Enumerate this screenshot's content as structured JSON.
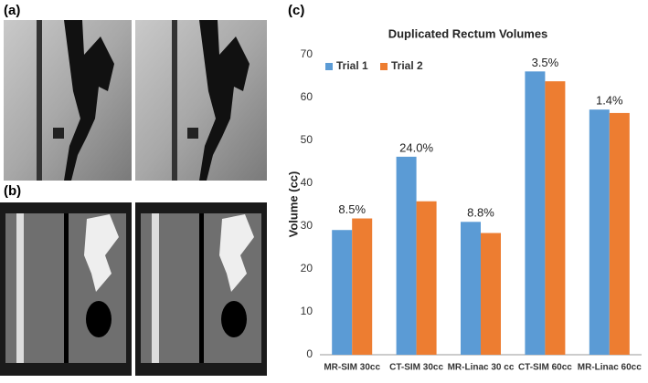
{
  "panels": [
    "(a)",
    "(b)",
    "(c)"
  ],
  "chart_data": {
    "type": "bar",
    "title": "Duplicated Rectum Volumes",
    "y_label": "Volume (cc)",
    "categories": [
      "MR-SIM 30cc",
      "CT-SIM 30cc",
      "MR-Linac 30 cc",
      "CT-SIM 60cc",
      "MR-Linac 60cc"
    ],
    "series": [
      {
        "name": "Trial 1",
        "color": "#5b9bd5",
        "values": [
          29.1,
          46.2,
          31.0,
          66.1,
          57.2
        ]
      },
      {
        "name": "Trial 2",
        "color": "#ed7d31",
        "values": [
          31.8,
          35.8,
          28.4,
          63.8,
          56.4
        ]
      }
    ],
    "annotations": [
      "8.5%",
      "24.0%",
      "8.8%",
      "3.5%",
      "1.4%"
    ],
    "ylim": [
      0,
      70
    ],
    "yticks": [
      0,
      10,
      20,
      30,
      40,
      50,
      60,
      70
    ],
    "grid": false,
    "legend": "top-left"
  }
}
